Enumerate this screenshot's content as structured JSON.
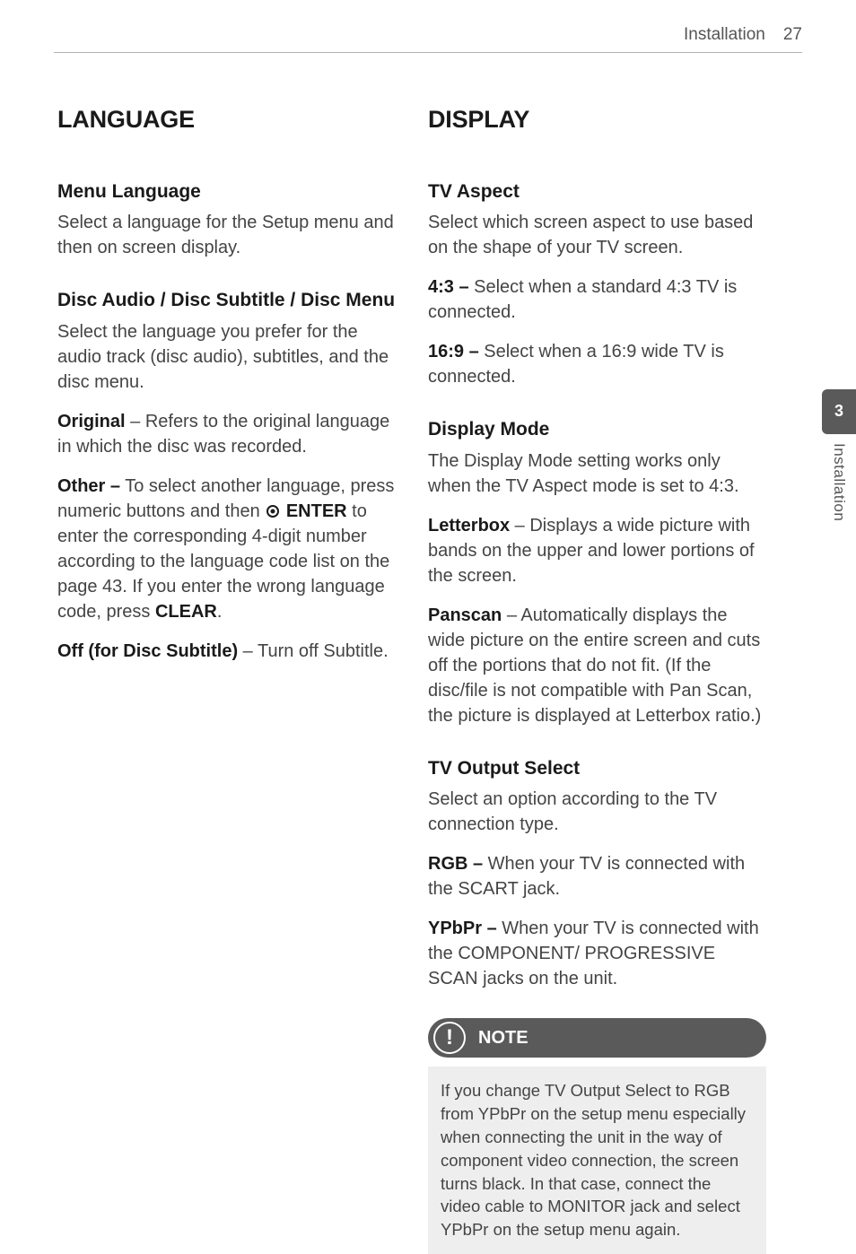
{
  "header": {
    "section": "Installation",
    "page": "27"
  },
  "sidetab": {
    "number": "3",
    "label": "Installation"
  },
  "left": {
    "title": "LANGUAGE",
    "menu_language": {
      "heading": "Menu Language",
      "body": "Select a language for the Setup menu and then on screen display."
    },
    "disc": {
      "heading": "Disc Audio / Disc Subtitle / Disc Menu",
      "intro": "Select the language you prefer for the audio track (disc audio), subtitles, and the disc menu.",
      "original_label": "Original",
      "original_body": " – Refers to the original language in which the disc was recorded.",
      "other_label": "Other –",
      "other_pre": " To select another language, press numeric buttons and then ",
      "enter_label": "ENTER",
      "other_mid": " to enter the corresponding 4-digit number according to the language code list on the page 43. If you enter the wrong language code, press ",
      "clear_label": "CLEAR",
      "other_end": ".",
      "off_label": "Off (for Disc Subtitle)",
      "off_body": " – Turn off Subtitle."
    }
  },
  "right": {
    "title": "DISPLAY",
    "tv_aspect": {
      "heading": "TV Aspect",
      "intro": "Select which screen aspect to use based on the shape of your TV screen.",
      "r43_label": "4:3 –",
      "r43_body": " Select when a standard 4:3 TV is connected.",
      "r169_label": "16:9 –",
      "r169_body": " Select when a 16:9 wide TV is connected."
    },
    "display_mode": {
      "heading": "Display Mode",
      "intro": "The Display Mode setting works only when the TV Aspect mode is set to 4:3.",
      "letterbox_label": "Letterbox",
      "letterbox_body": " – Displays a wide picture with bands on the upper and lower portions of the screen.",
      "panscan_label": "Panscan",
      "panscan_body": " – Automatically displays the wide picture on the entire screen and cuts off the portions that do not fit. (If the disc/file is not compatible with Pan Scan, the picture is displayed at Letterbox ratio.)"
    },
    "tv_output": {
      "heading": "TV Output Select",
      "intro": "Select an option according to the TV connection type.",
      "rgb_label": "RGB –",
      "rgb_body": " When your TV is connected with the SCART jack.",
      "ypbpr_label": "YPbPr –",
      "ypbpr_body": " When your TV is connected with the COMPONENT/ PROGRESSIVE SCAN jacks on the unit."
    },
    "note": {
      "badge": "!",
      "title": "NOTE",
      "body": "If you change TV Output Select to RGB from YPbPr on the setup menu especially when connecting the unit in the way of component video connection, the screen turns black. In that case, connect the video cable to MONITOR jack and select YPbPr on the setup menu again."
    }
  }
}
